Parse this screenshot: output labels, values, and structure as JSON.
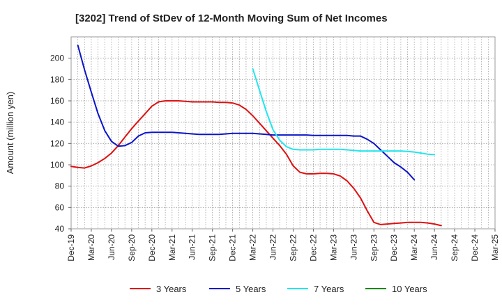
{
  "chart_data": {
    "type": "line",
    "title": "[3202]  Trend of StDev of 12-Month Moving Sum of Net Incomes",
    "xlabel": "",
    "ylabel": "Amount (million yen)",
    "ylim": [
      40,
      220
    ],
    "yticks": [
      40,
      60,
      80,
      100,
      120,
      140,
      160,
      180,
      200
    ],
    "xticks": [
      "Dec-19",
      "Mar-20",
      "Jun-20",
      "Sep-20",
      "Dec-20",
      "Mar-21",
      "Jun-21",
      "Sep-21",
      "Dec-21",
      "Mar-22",
      "Jun-22",
      "Sep-22",
      "Dec-22",
      "Mar-23",
      "Jun-23",
      "Sep-23",
      "Dec-23",
      "Mar-24",
      "Jun-24",
      "Sep-24",
      "Dec-24",
      "Mar-25"
    ],
    "grid": true,
    "legend_position": "bottom",
    "series": [
      {
        "name": "3 Years",
        "color": "#dd1111",
        "start_index": 0,
        "values": [
          98.5,
          97.5,
          97,
          99,
          102,
          106,
          111,
          118,
          126,
          134,
          141,
          148,
          155,
          159,
          160,
          160,
          160,
          159.5,
          159,
          159,
          159,
          159,
          158.5,
          158.5,
          158,
          156,
          152,
          146,
          139,
          132,
          125,
          118,
          110,
          99,
          93,
          91.5,
          91.5,
          92,
          92,
          91.5,
          89.5,
          85,
          78,
          69,
          57,
          46,
          44,
          44.5,
          45,
          45.5,
          46,
          46,
          46,
          45.5,
          44.5,
          43
        ]
      },
      {
        "name": "5 Years",
        "color": "#0a14c8",
        "start_index": 1,
        "values": [
          212,
          189,
          168,
          148,
          132,
          122,
          117.5,
          118,
          121,
          127,
          130,
          130.5,
          130.5,
          130.5,
          130.5,
          130,
          129.5,
          129,
          128.5,
          128.5,
          128.5,
          128.5,
          129,
          129.5,
          129.5,
          129.5,
          129.5,
          129,
          128.5,
          128,
          128,
          128,
          128,
          128,
          128,
          127.5,
          127.5,
          127.5,
          127.5,
          127.5,
          127.5,
          127,
          127,
          124,
          120,
          114,
          108,
          102,
          98,
          93,
          86
        ]
      },
      {
        "name": "7 Years",
        "color": "#22e6ee",
        "start_index": 27,
        "values": [
          190,
          170,
          150,
          133,
          123,
          117,
          114.5,
          114,
          114,
          114,
          114.5,
          114.5,
          114.5,
          114.5,
          114,
          113.5,
          113,
          113,
          113,
          113,
          113,
          113,
          113,
          112.5,
          112,
          111,
          110,
          109.5
        ]
      },
      {
        "name": "10 Years",
        "color": "#118811",
        "start_index": 0,
        "values": []
      }
    ]
  }
}
